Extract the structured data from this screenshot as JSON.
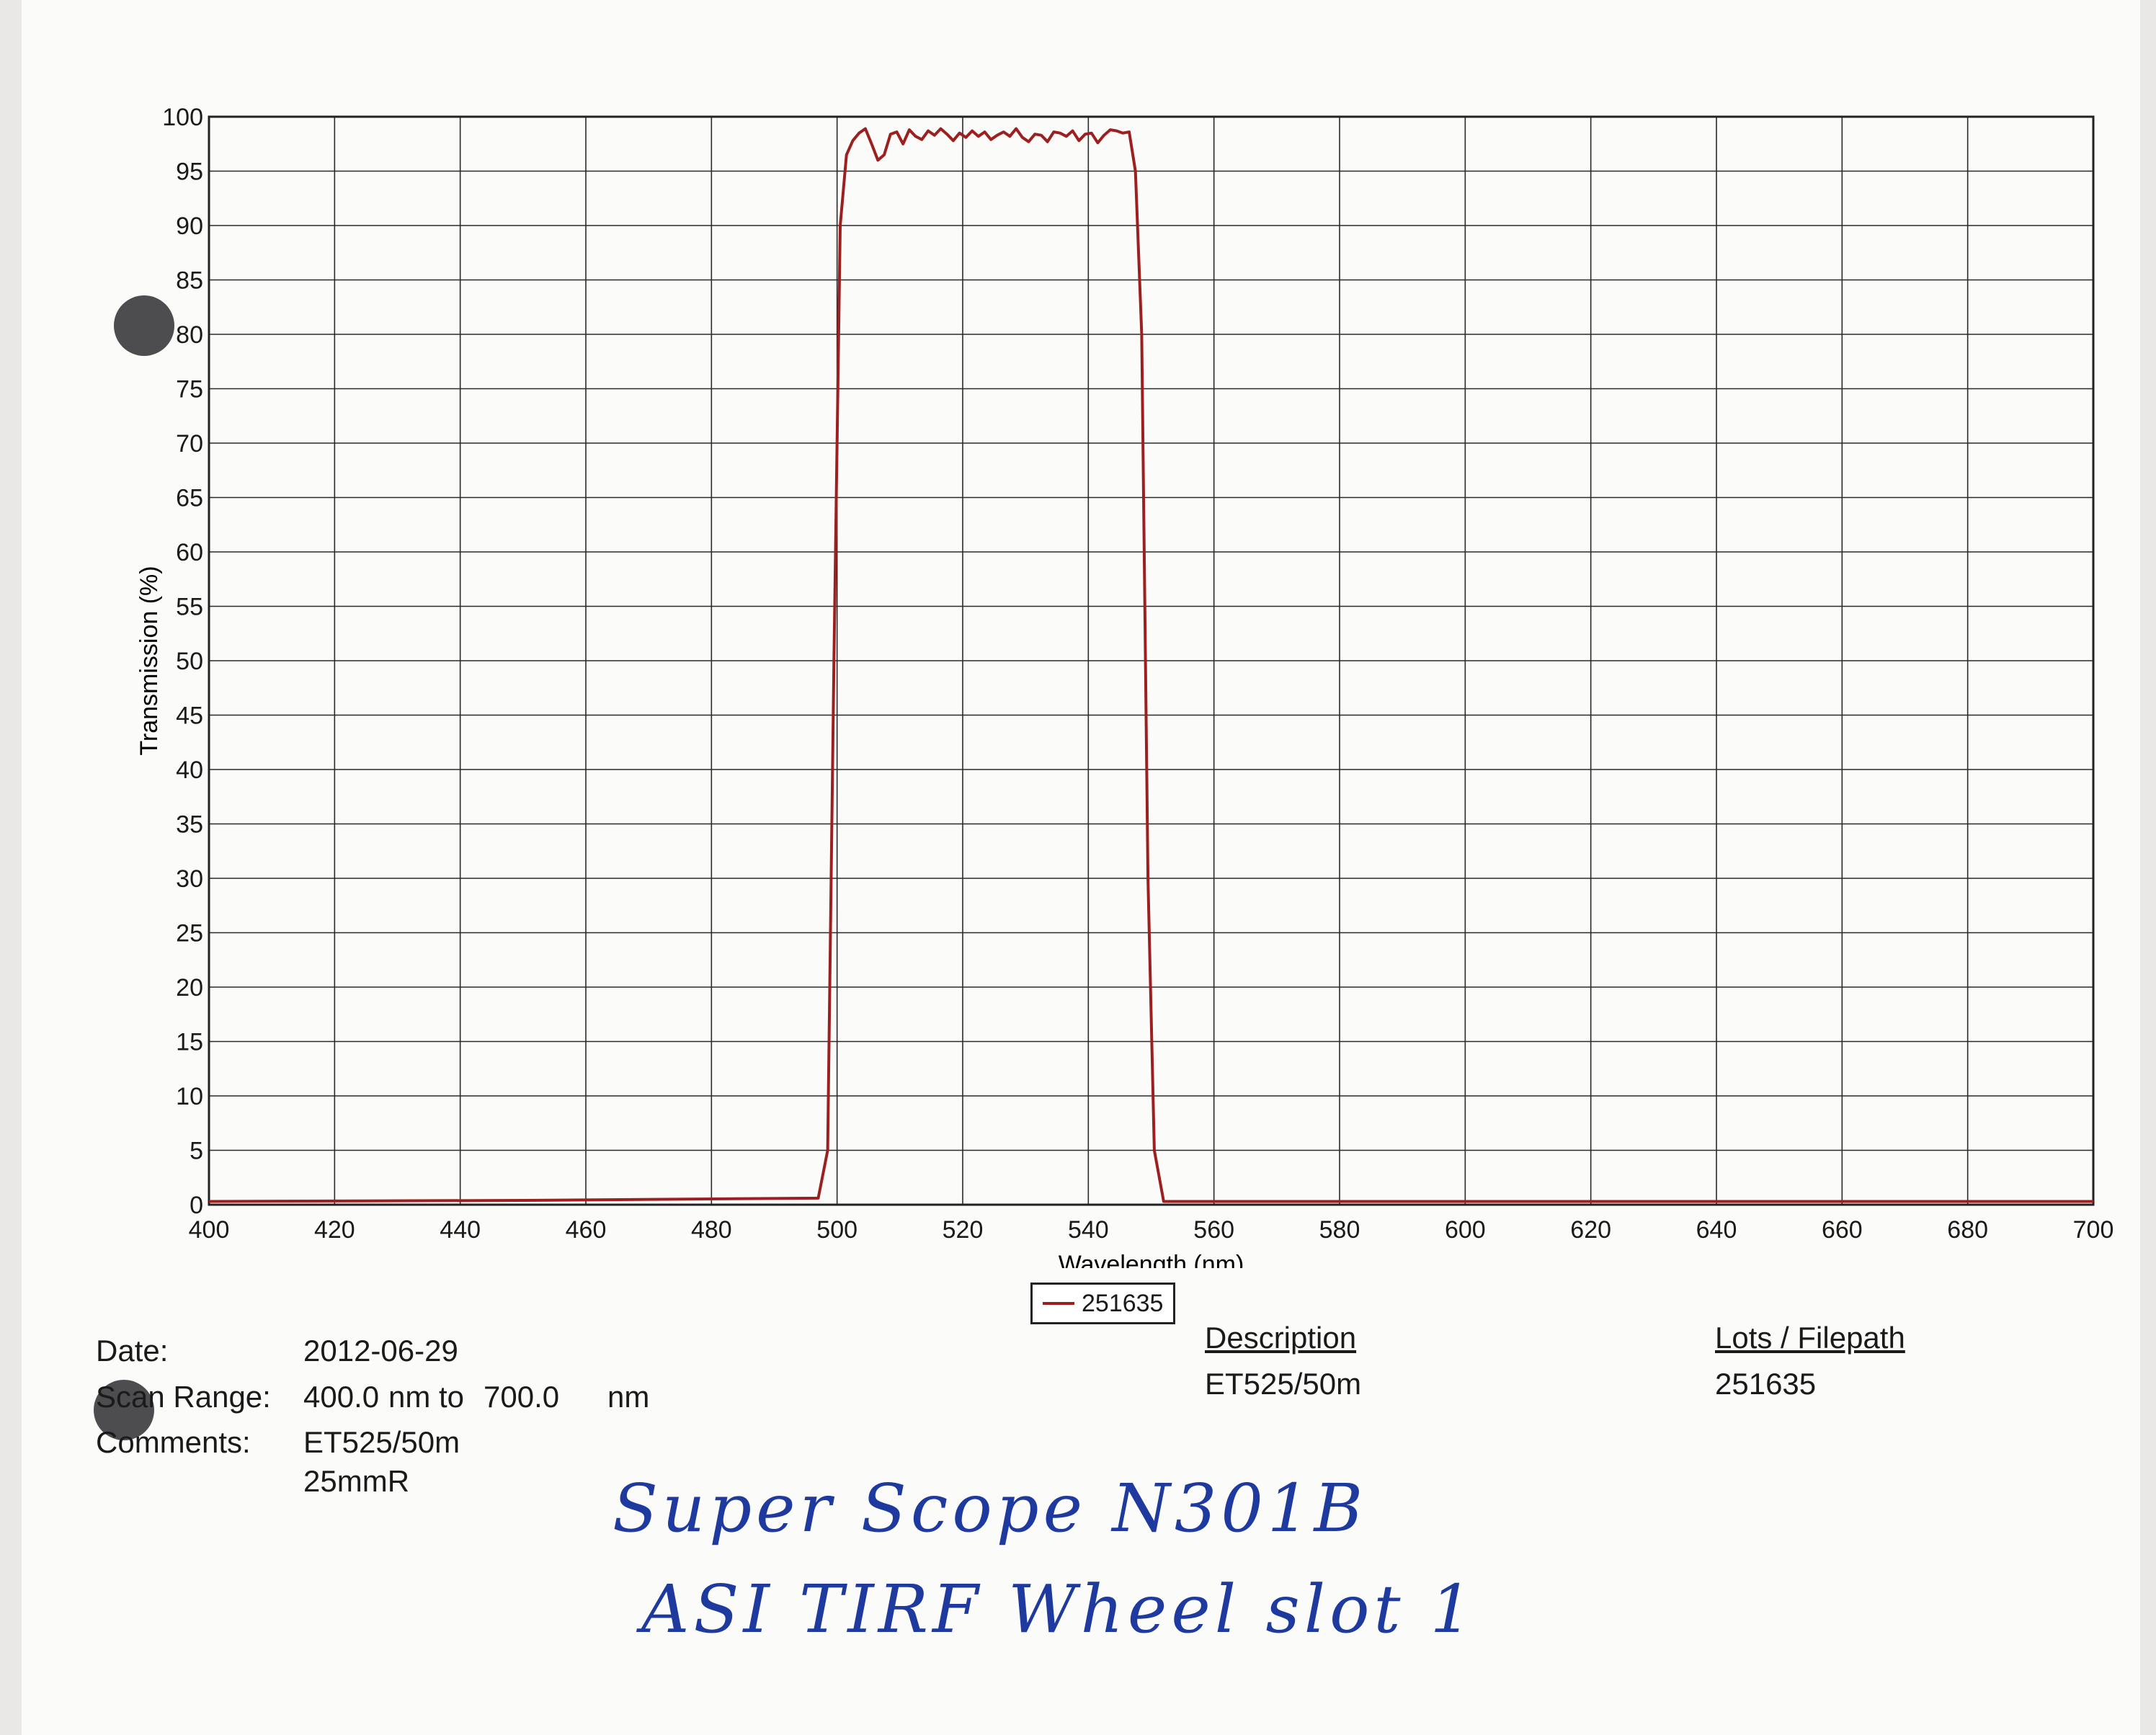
{
  "chart_data": {
    "type": "line",
    "xlabel": "Wavelength (nm)",
    "ylabel": "Transmission (%)",
    "xlim": [
      400,
      700
    ],
    "ylim": [
      0,
      100
    ],
    "xticks": [
      400,
      420,
      440,
      460,
      480,
      500,
      520,
      540,
      560,
      580,
      600,
      620,
      640,
      660,
      680,
      700
    ],
    "yticks": [
      0,
      5,
      10,
      15,
      20,
      25,
      30,
      35,
      40,
      45,
      50,
      55,
      60,
      65,
      70,
      75,
      80,
      85,
      90,
      95,
      100
    ],
    "grid": true,
    "legend_position": "bottom-center",
    "series": [
      {
        "name": "251635",
        "color": "#9c2020",
        "x": [
          400,
          450,
          497,
          498.5,
          499.5,
          500.5,
          501.5,
          502.5,
          503.5,
          504.5,
          505.5,
          506.5,
          507.5,
          508.5,
          509.5,
          510.5,
          511.5,
          512.5,
          513.5,
          514.5,
          515.5,
          516.5,
          517.5,
          518.5,
          519.5,
          520.5,
          521.5,
          522.5,
          523.5,
          524.5,
          525.5,
          526.5,
          527.5,
          528.5,
          529.5,
          530.5,
          531.5,
          532.5,
          533.5,
          534.5,
          535.5,
          536.5,
          537.5,
          538.5,
          539.5,
          540.5,
          541.5,
          542.5,
          543.5,
          544.5,
          545.5,
          546.5,
          547.5,
          548.5,
          549.5,
          550.5,
          552,
          600,
          700
        ],
        "values": [
          0.3,
          0.4,
          0.6,
          5,
          50,
          90,
          96.5,
          97.8,
          98.5,
          98.9,
          97.5,
          96,
          96.5,
          98.4,
          98.6,
          97.5,
          98.8,
          98.2,
          97.9,
          98.7,
          98.3,
          98.9,
          98.4,
          97.8,
          98.5,
          98.1,
          98.7,
          98.2,
          98.6,
          97.9,
          98.3,
          98.6,
          98.2,
          98.9,
          98.1,
          97.7,
          98.4,
          98.3,
          97.7,
          98.6,
          98.5,
          98.2,
          98.7,
          97.8,
          98.4,
          98.5,
          97.6,
          98.3,
          98.8,
          98.7,
          98.5,
          98.6,
          95,
          80,
          30,
          5,
          0.3,
          0.3,
          0.3
        ]
      }
    ]
  },
  "legend": {
    "label": "251635"
  },
  "info": {
    "date_label": "Date:",
    "date_value": "2012-06-29",
    "scan_label": "Scan Range:",
    "scan_from": "400.0",
    "scan_mid": "nm to",
    "scan_to": "700.0",
    "scan_unit": "nm",
    "comments_label": "Comments:",
    "comments_line1": "ET525/50m",
    "comments_line2": "25mmR"
  },
  "description": {
    "heading": "Description",
    "value": "ET525/50m"
  },
  "lots": {
    "heading": "Lots / Filepath",
    "value": "251635"
  },
  "handwriting": {
    "line1": "Super Scope N301B",
    "line2": "ASI TIRF Wheel slot 1"
  }
}
